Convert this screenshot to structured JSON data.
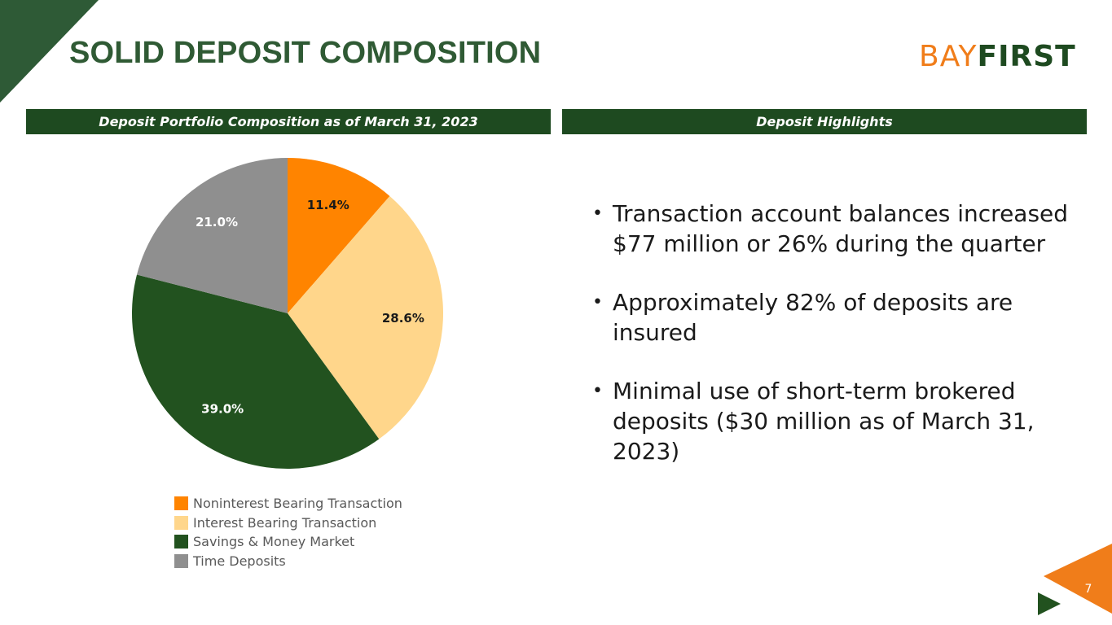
{
  "title": "SOLID DEPOSIT COMPOSITION",
  "logo": {
    "part1": "BAY",
    "part2": "FIRST"
  },
  "sections": {
    "left_header": "Deposit Portfolio Composition as of March 31, 2023",
    "right_header": "Deposit Highlights"
  },
  "chart_data": {
    "type": "pie",
    "title": "",
    "categories": [
      "Noninterest Bearing Transaction",
      "Interest Bearing Transaction",
      "Savings & Money Market",
      "Time Deposits"
    ],
    "values": [
      11.4,
      28.6,
      39.0,
      21.0
    ],
    "labels": [
      "11.4%",
      "28.6%",
      "39.0%",
      "21.0%"
    ],
    "colors": [
      "#ff8400",
      "#ffd68b",
      "#22521f",
      "#8f8f8f"
    ],
    "label_colors": [
      "#1a1a1a",
      "#1a1a1a",
      "#ffffff",
      "#ffffff"
    ],
    "start": "12 o'clock",
    "direction": "clockwise",
    "legend_position": "bottom"
  },
  "highlights": [
    "Transaction account balances increased $77 million or 26% during the quarter",
    "Approximately 82% of deposits are insured",
    "Minimal use of short-term brokered deposits ($30 million as of March 31, 2023)"
  ],
  "page_number": "7",
  "colors": {
    "brand_green": "#1e4a20",
    "title_green": "#2f5a34",
    "brand_orange": "#f07d1a",
    "corner_green": "#2e5a36"
  }
}
